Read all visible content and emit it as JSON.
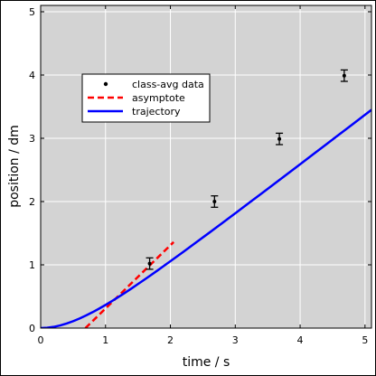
{
  "chart_data": {
    "type": "line",
    "xlabel": "time / s",
    "ylabel": "position / dm",
    "xlim": [
      0,
      5.1
    ],
    "ylim": [
      0,
      5.1
    ],
    "xticks": [
      0,
      1,
      2,
      3,
      4,
      5
    ],
    "yticks": [
      0,
      1,
      2,
      3,
      4,
      5
    ],
    "grid": true,
    "legend_position": "upper-left",
    "background_color": "#d3d3d3",
    "grid_color": "#ffffff",
    "series": [
      {
        "name": "class-avg data",
        "kind": "scatter-errorbar",
        "color": "#000000",
        "x": [
          1.68,
          2.68,
          3.68,
          4.68
        ],
        "y": [
          1.02,
          2.0,
          2.99,
          3.99
        ],
        "yerr": [
          0.09,
          0.09,
          0.09,
          0.09
        ]
      },
      {
        "name": "asymptote",
        "kind": "dashed-line",
        "color": "#ff0000",
        "x": [
          0.69,
          2.05
        ],
        "y": [
          0.0,
          1.36
        ]
      },
      {
        "name": "trajectory",
        "kind": "line",
        "color": "#0000ff",
        "x": [
          0.0,
          0.1,
          0.2,
          0.3,
          0.4,
          0.5,
          0.6,
          0.7,
          0.8,
          0.9,
          1.0,
          1.1,
          1.2,
          1.3,
          1.4,
          1.5,
          1.6,
          1.7,
          1.8,
          1.9,
          2.0,
          2.2,
          2.4,
          2.6,
          2.8,
          3.0,
          3.2,
          3.4,
          3.6,
          3.8,
          4.0,
          4.2,
          4.4,
          4.6,
          4.8,
          5.0,
          5.1
        ],
        "y": [
          0.0,
          0.005,
          0.019,
          0.042,
          0.073,
          0.109,
          0.152,
          0.2,
          0.251,
          0.307,
          0.366,
          0.428,
          0.492,
          0.558,
          0.626,
          0.696,
          0.766,
          0.838,
          0.91,
          0.984,
          1.057,
          1.206,
          1.357,
          1.508,
          1.661,
          1.815,
          1.969,
          2.124,
          2.279,
          2.434,
          2.59,
          2.746,
          2.902,
          3.059,
          3.215,
          3.372,
          3.45
        ]
      }
    ]
  }
}
